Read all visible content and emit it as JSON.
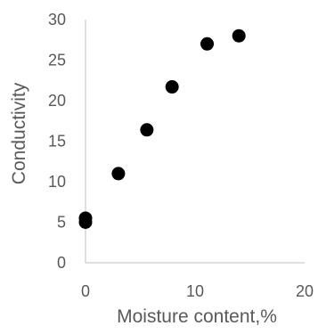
{
  "chart_data": {
    "type": "scatter",
    "title": "",
    "xlabel": "Moisture content,%",
    "ylabel": "Conductivity",
    "xlim": [
      0,
      20
    ],
    "ylim": [
      0,
      30
    ],
    "xticks": [
      "0",
      "10",
      "20"
    ],
    "yticks": [
      "0",
      "5",
      "10",
      "15",
      "20",
      "25",
      "30"
    ],
    "grid": false,
    "legend": "none",
    "marker_color": "#000000",
    "axis_color": "#bfbfbf",
    "text_color": "#595959",
    "series": [
      {
        "x": [
          0,
          0,
          3,
          5.6,
          7.9,
          11.1,
          14
        ],
        "y": [
          5,
          5.5,
          11,
          16.4,
          21.7,
          27,
          28
        ]
      }
    ]
  }
}
